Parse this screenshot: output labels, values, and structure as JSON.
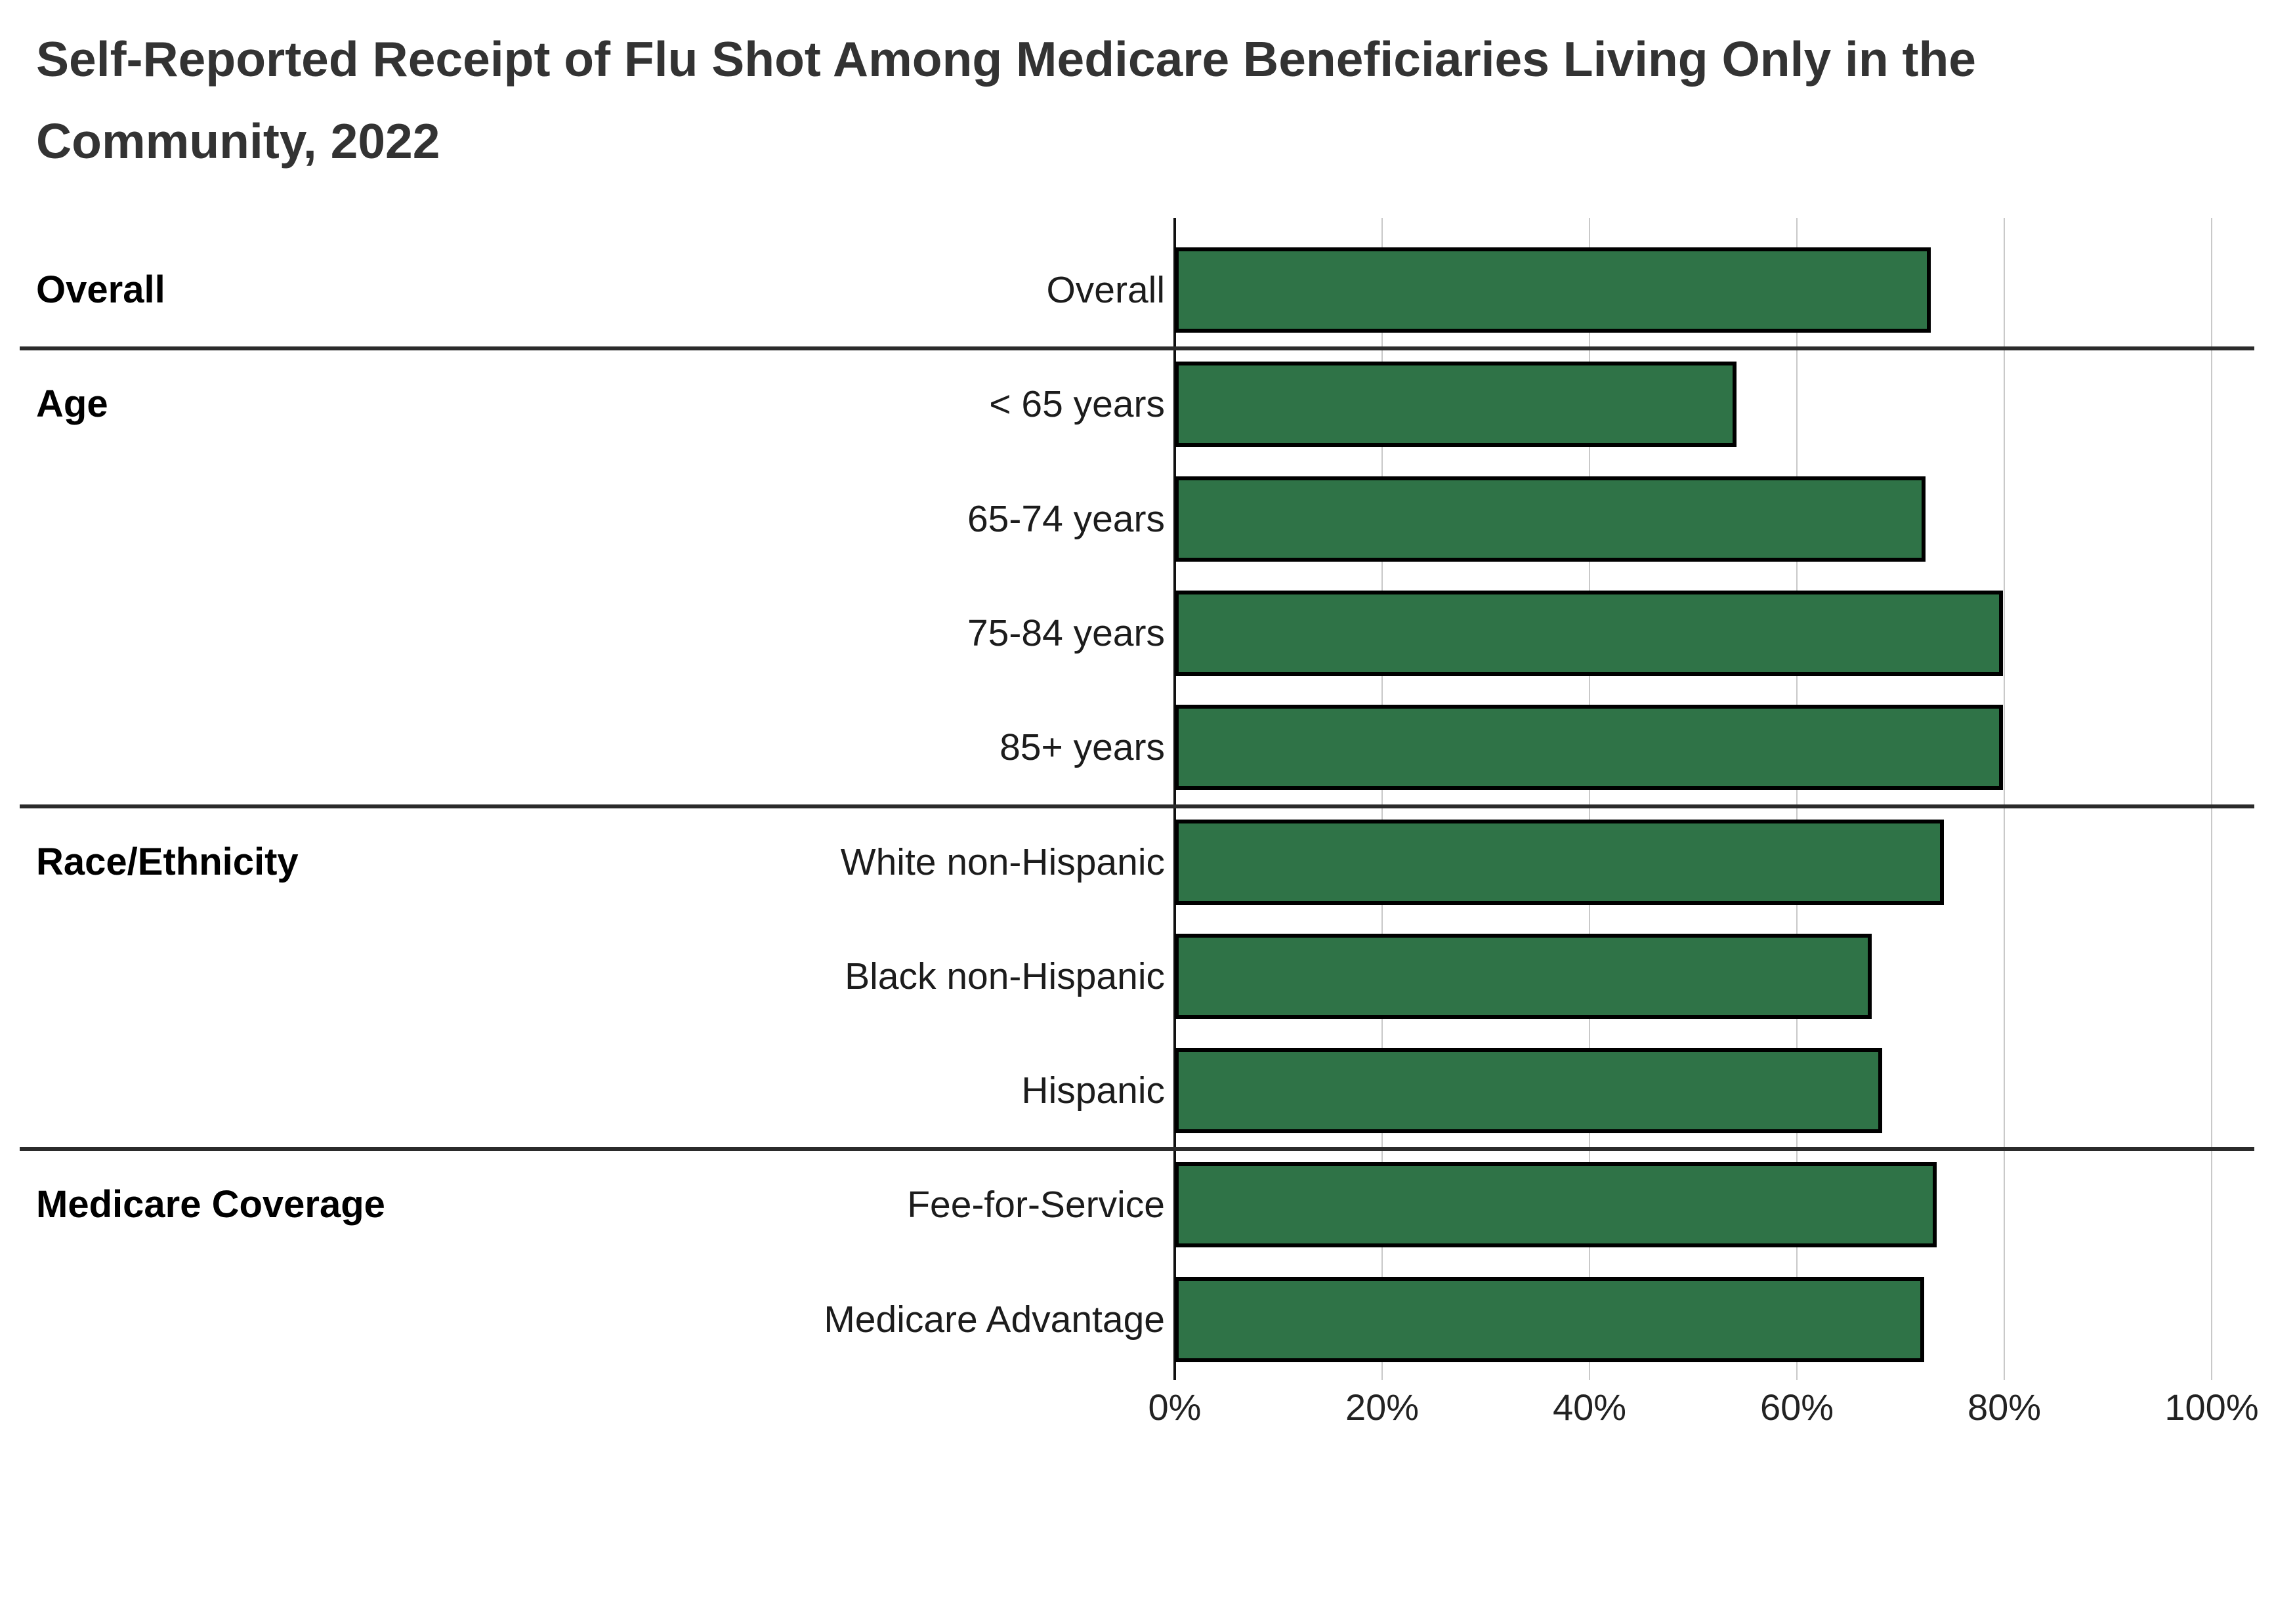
{
  "title": "Self-Reported Receipt of Flu Shot Among Medicare Beneficiaries Living Only in the Community, 2022",
  "chart_data": {
    "type": "bar",
    "orientation": "horizontal",
    "title": "Self-Reported Receipt of Flu Shot Among Medicare Beneficiaries Living Only in the Community, 2022",
    "xlabel": "",
    "ylabel": "",
    "xlim": [
      0,
      100
    ],
    "x_tick_values": [
      0,
      20,
      40,
      60,
      80,
      100
    ],
    "x_tick_labels": [
      "0%",
      "20%",
      "40%",
      "60%",
      "80%",
      "100%"
    ],
    "grid": true,
    "legend": false,
    "bar_color": "#2F7347",
    "bar_border_color": "#000000",
    "sections": [
      {
        "name": "Overall",
        "rows": [
          {
            "label": "Overall",
            "value": 72.9
          }
        ]
      },
      {
        "name": "Age",
        "rows": [
          {
            "label": "< 65 years",
            "value": 54.2
          },
          {
            "label": "65-74 years",
            "value": 72.4
          },
          {
            "label": "75-84 years",
            "value": 79.9
          },
          {
            "label": "85+ years",
            "value": 79.9
          }
        ]
      },
      {
        "name": "Race/Ethnicity",
        "rows": [
          {
            "label": "White non-Hispanic",
            "value": 74.2
          },
          {
            "label": "Black non-Hispanic",
            "value": 67.2
          },
          {
            "label": "Hispanic",
            "value": 68.2
          }
        ]
      },
      {
        "name": "Medicare Coverage",
        "rows": [
          {
            "label": "Fee-for-Service",
            "value": 73.5
          },
          {
            "label": "Medicare Advantage",
            "value": 72.3
          }
        ]
      }
    ]
  }
}
